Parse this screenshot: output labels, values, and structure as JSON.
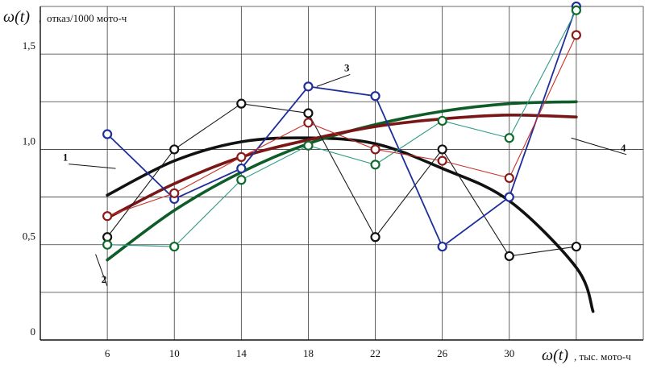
{
  "chart_data": {
    "type": "line",
    "y_axis": {
      "symbol": "ω(t)",
      "suffix": ",",
      "unit": "отказ/1000 мото-ч",
      "ticks": [
        "0",
        "0,5",
        "1,0",
        "1,5"
      ],
      "tick_values": [
        0,
        0.5,
        1.0,
        1.5
      ],
      "ylim": [
        0,
        1.75
      ]
    },
    "x_axis": {
      "symbol": "ω(t)",
      "unit": ", тыс. мото-ч",
      "ticks": [
        "6",
        "10",
        "14",
        "18",
        "22",
        "26",
        "30"
      ],
      "tick_values": [
        6,
        10,
        14,
        18,
        22,
        26,
        30
      ],
      "xlim": [
        2,
        38
      ]
    },
    "grid": true,
    "series": [
      {
        "kind": "data",
        "color": "#1a1a1a",
        "marker_color": "#111111",
        "x": [
          6,
          10,
          14,
          18,
          22,
          26,
          30,
          34
        ],
        "y": [
          0.54,
          1.0,
          1.24,
          1.19,
          0.54,
          1.0,
          0.44,
          0.49
        ]
      },
      {
        "kind": "data",
        "color": "#1f2f9a",
        "marker_color": "#1f2f9a",
        "x": [
          6,
          10,
          14,
          18,
          22,
          26,
          30,
          34
        ],
        "y": [
          1.08,
          0.74,
          0.9,
          1.33,
          1.28,
          0.49,
          0.75,
          1.75
        ]
      },
      {
        "kind": "data",
        "color": "#2e9c86",
        "marker_color": "#0e6b2a",
        "x": [
          6,
          10,
          14,
          18,
          22,
          26,
          30,
          34
        ],
        "y": [
          0.5,
          0.49,
          0.84,
          1.02,
          0.92,
          1.15,
          1.06,
          1.73
        ]
      },
      {
        "kind": "data",
        "color": "#c8322b",
        "marker_color": "#8b1a1a",
        "x": [
          6,
          10,
          14,
          18,
          22,
          26,
          30,
          34
        ],
        "y": [
          0.65,
          0.77,
          0.96,
          1.14,
          1.0,
          0.94,
          0.85,
          1.6
        ]
      },
      {
        "kind": "fit",
        "name": "1",
        "color": "#111111",
        "x": [
          6,
          10,
          14,
          18,
          22,
          26,
          30,
          34,
          35
        ],
        "y": [
          0.76,
          0.94,
          1.04,
          1.06,
          1.03,
          0.9,
          0.73,
          0.38,
          0.15
        ]
      },
      {
        "kind": "fit",
        "name": "2",
        "color": "#0e5c28",
        "x": [
          6,
          10,
          14,
          18,
          22,
          26,
          30,
          34
        ],
        "y": [
          0.42,
          0.68,
          0.88,
          1.03,
          1.13,
          1.2,
          1.24,
          1.25
        ]
      },
      {
        "kind": "fit",
        "name": "3",
        "color": "#1f2f9a",
        "x": [],
        "y": []
      },
      {
        "kind": "fit",
        "name": "4",
        "color": "#7a1616",
        "x": [
          6,
          10,
          14,
          18,
          22,
          26,
          30,
          34
        ],
        "y": [
          0.64,
          0.82,
          0.96,
          1.05,
          1.12,
          1.16,
          1.18,
          1.17
        ]
      }
    ],
    "labels": [
      {
        "text": "1",
        "series": 4,
        "at": [
          3.5,
          0.94
        ],
        "pointer_to": [
          6.5,
          0.9
        ]
      },
      {
        "text": "2",
        "series": 5,
        "at": [
          5.8,
          0.3
        ],
        "pointer_to": [
          5.3,
          0.45
        ]
      },
      {
        "text": "3",
        "series": 1,
        "at": [
          20.3,
          1.41
        ],
        "pointer_to": [
          18.5,
          1.33
        ]
      },
      {
        "text": "4",
        "series": 7,
        "at": [
          36.8,
          0.99
        ],
        "pointer_to": [
          33.7,
          1.06
        ]
      }
    ]
  }
}
